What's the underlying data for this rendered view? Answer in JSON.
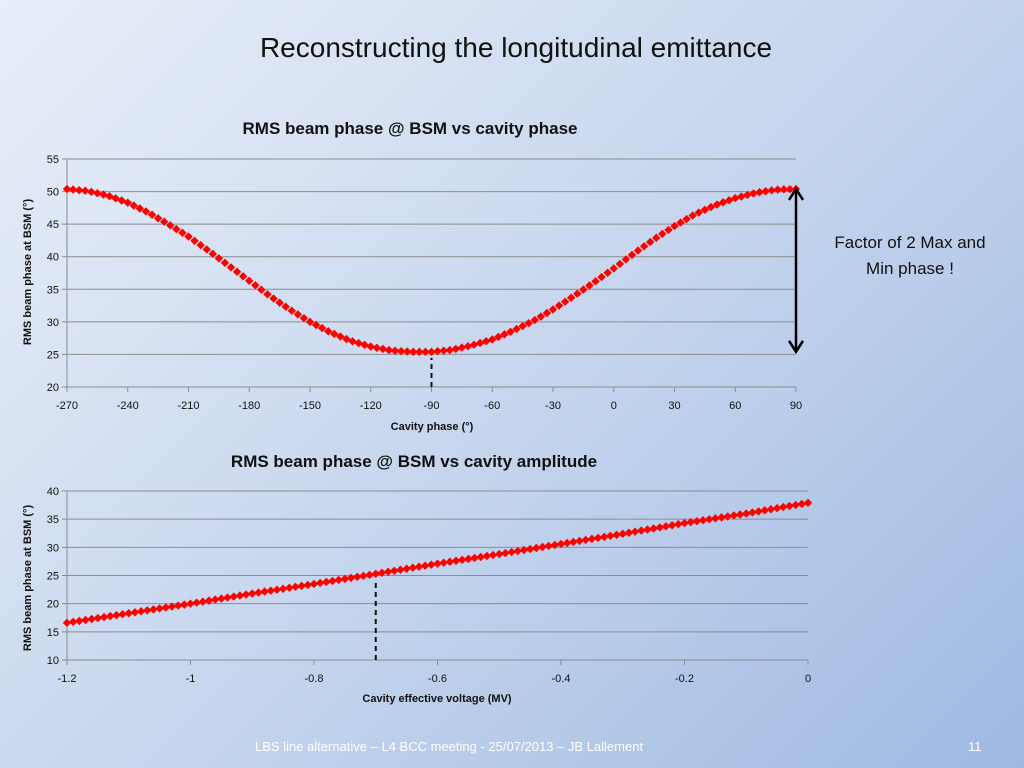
{
  "slide": {
    "title": "Reconstructing the longitudinal emittance",
    "annotation_line1": "Factor of 2 Max and",
    "annotation_line2": "Min phase !",
    "footer": "LBS line alternative  – L4 BCC meeting - 25/07/2013 – JB Lallement",
    "page_number": "11"
  },
  "colors": {
    "marker": "#ff0000",
    "grid": "#8c8c8c",
    "footer_text": "#ffffff"
  },
  "chart_data": [
    {
      "type": "scatter",
      "title": "RMS beam phase @ BSM vs cavity phase",
      "xlabel": "Cavity phase (°)",
      "ylabel": "RMS beam phase at BSM (°)",
      "xlim": [
        -270,
        90
      ],
      "ylim": [
        20,
        55
      ],
      "xticks": [
        -270,
        -240,
        -210,
        -180,
        -150,
        -120,
        -90,
        -60,
        -30,
        0,
        30,
        60,
        90
      ],
      "yticks": [
        20,
        25,
        30,
        35,
        40,
        45,
        50,
        55
      ],
      "grid": true,
      "x": [
        -270,
        -260,
        -250,
        -240,
        -230,
        -220,
        -210,
        -200,
        -190,
        -180,
        -170,
        -160,
        -150,
        -140,
        -130,
        -120,
        -110,
        -100,
        -90,
        -80,
        -70,
        -60,
        -50,
        -40,
        -30,
        -20,
        -10,
        0,
        10,
        20,
        30,
        40,
        50,
        60,
        70,
        80,
        90
      ],
      "y": [
        50.4,
        50.1,
        49.4,
        48.3,
        46.8,
        45.0,
        43.1,
        40.9,
        38.6,
        36.3,
        34.0,
        31.9,
        30.0,
        28.4,
        27.1,
        26.2,
        25.6,
        25.4,
        25.4,
        25.7,
        26.4,
        27.3,
        28.6,
        30.1,
        31.9,
        33.9,
        36.0,
        38.2,
        40.5,
        42.7,
        44.7,
        46.5,
        47.9,
        49.0,
        49.8,
        50.3,
        50.4
      ],
      "marker_line_x": -90,
      "marker_line_range": [
        20,
        25.4
      ],
      "arrow_x": 90,
      "arrow_range": [
        25.4,
        50.4
      ]
    },
    {
      "type": "scatter",
      "title": "RMS beam phase @ BSM vs cavity amplitude",
      "xlabel": "Cavity effective voltage (MV)",
      "ylabel": "RMS beam phase at BSM (°)",
      "xlim": [
        -1.2,
        0
      ],
      "ylim": [
        10,
        40
      ],
      "xticks": [
        -1.2,
        -1,
        -0.8,
        -0.6,
        -0.4,
        -0.2,
        0
      ],
      "yticks": [
        10,
        15,
        20,
        25,
        30,
        35,
        40
      ],
      "grid": true,
      "x": [
        -1.2,
        -1.1,
        -1.0,
        -0.9,
        -0.8,
        -0.7,
        -0.6,
        -0.5,
        -0.4,
        -0.3,
        -0.2,
        -0.1,
        0
      ],
      "y": [
        16.6,
        18.3,
        20.0,
        21.8,
        23.5,
        25.3,
        27.1,
        28.8,
        30.6,
        32.4,
        34.3,
        36.0,
        37.9
      ],
      "marker_line_x": -0.7,
      "marker_line_range": [
        10,
        25.3
      ]
    }
  ]
}
